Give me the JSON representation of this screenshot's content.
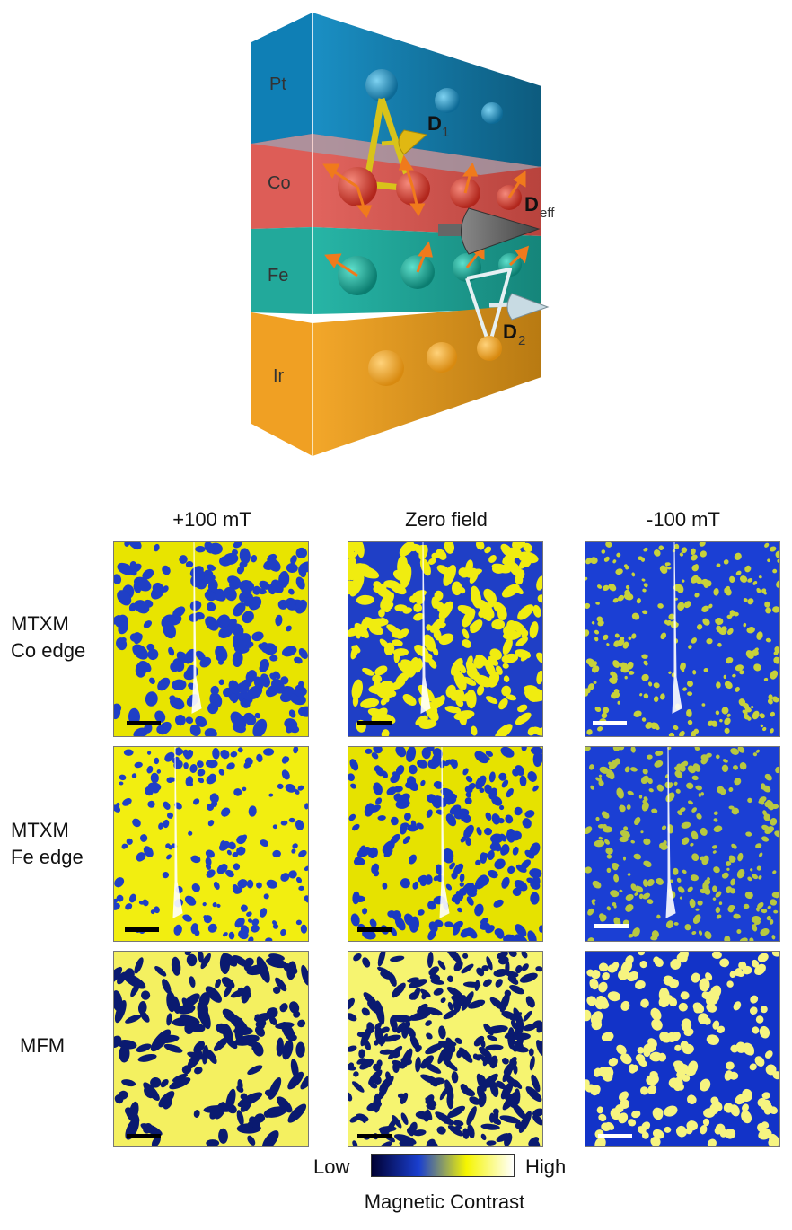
{
  "diagram": {
    "layers": [
      {
        "name": "Pt",
        "color": "#1a8fc4"
      },
      {
        "name": "Co",
        "color": "#e1645e"
      },
      {
        "name": "Fe",
        "color": "#27b5a6"
      },
      {
        "name": "Ir",
        "color": "#f3a72a"
      }
    ],
    "vectors": {
      "d1_main": "D",
      "d1_sub": "1",
      "deff_main": "D",
      "deff_sub": "eff",
      "d2_main": "D",
      "d2_sub": "2"
    }
  },
  "grid": {
    "columns": [
      "+100 mT",
      "Zero field",
      "-100 mT"
    ],
    "rows": [
      {
        "line1": "MTXM",
        "line2": "Co edge"
      },
      {
        "line1": "MTXM",
        "line2": "Fe edge"
      },
      {
        "line1": "MFM",
        "line2": ""
      }
    ]
  },
  "colorbar": {
    "low_label": "Low",
    "high_label": "High",
    "title": "Magnetic Contrast",
    "stops": [
      "#000033",
      "#1a3fcf",
      "#f5f500",
      "#ffffff"
    ]
  }
}
